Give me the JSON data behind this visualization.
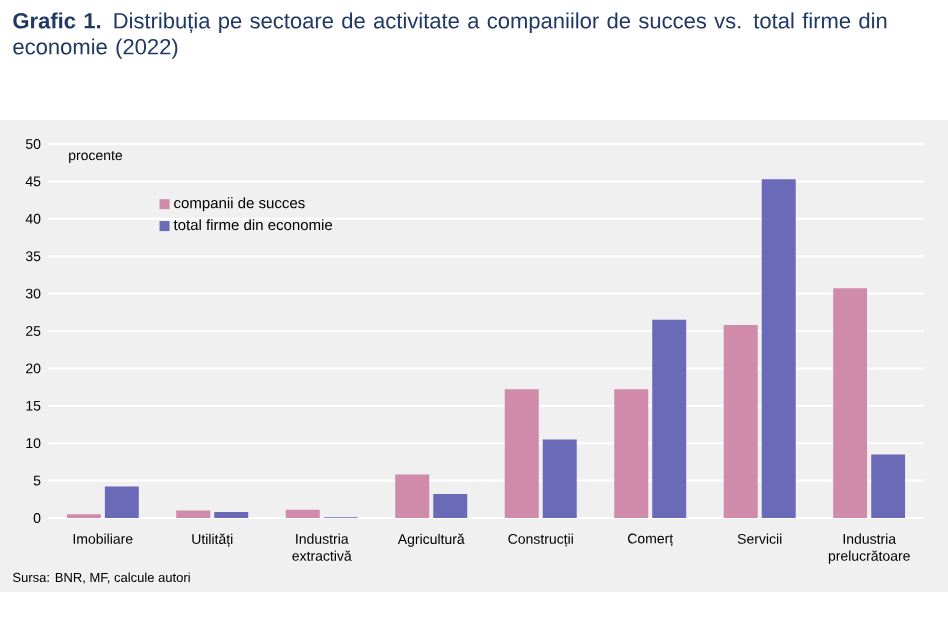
{
  "chart_data": {
    "type": "bar",
    "title": "**Grafic 1.** Distribuția pe sectoare de activitate a companiilor de succes vs. total firme din economie (2022)",
    "ylabel": "procente",
    "categories": [
      "Imobiliare",
      "Utilități",
      "Industria extractivă",
      "Agricultură",
      "Construcții",
      "Comerț",
      "Servicii",
      "Industria prelucrătoare"
    ],
    "series": [
      {
        "name": "companii de succes",
        "color": "#d08aaa",
        "values": [
          0.5,
          1.0,
          1.1,
          5.8,
          17.2,
          17.2,
          25.8,
          30.7
        ]
      },
      {
        "name": "total firme din economie",
        "color": "#6a6ab8",
        "values": [
          4.2,
          0.8,
          0.1,
          3.2,
          10.5,
          26.5,
          45.3,
          8.5
        ]
      }
    ],
    "ylim": [
      0,
      50
    ],
    "yticks": [
      0,
      5,
      10,
      15,
      20,
      25,
      30,
      35,
      40,
      45,
      50
    ],
    "grid": "y",
    "legend": "top left",
    "annotations": [
      "Sursa: BNR, MF, calcule autori"
    ]
  }
}
